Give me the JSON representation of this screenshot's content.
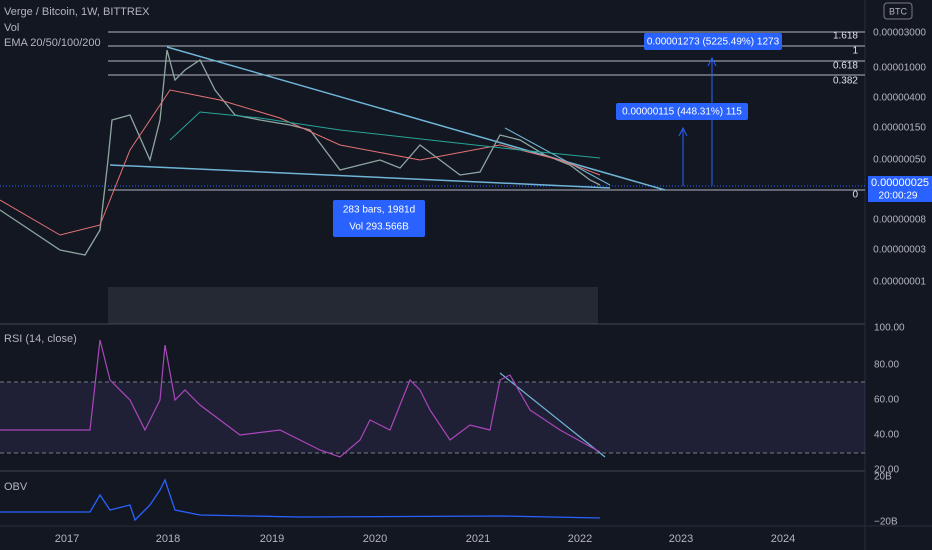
{
  "header": {
    "symbol": "Verge / Bitcoin, 1W, BITTREX",
    "vol": "Vol",
    "ema": "EMA 20/50/100/200"
  },
  "currency": "BTC",
  "price_axis": [
    "0.00003000",
    "0.00001000",
    "0.00000400",
    "0.00000150",
    "0.00000050",
    "0.00000008",
    "0.00000003",
    "0.00000001"
  ],
  "current_price": {
    "price": "0.00000025",
    "countdown": "20:00:29"
  },
  "fib_levels": [
    "1.618",
    "1",
    "0.618",
    "0.382",
    "0"
  ],
  "measures": [
    "0.00001273 (5225.49%) 1273",
    "0.00000115 (448.31%) 115"
  ],
  "range_box": {
    "bars": "283 bars, 1981d",
    "volume": "Vol 293.566B"
  },
  "rsi": {
    "title": "RSI (14, close)",
    "axis": [
      "100.00",
      "80.00",
      "60.00",
      "40.00",
      "20.00"
    ]
  },
  "obv": {
    "title": "OBV",
    "axis": [
      "20B",
      "−20B"
    ]
  },
  "time_axis": [
    "2017",
    "2018",
    "2019",
    "2020",
    "2021",
    "2022",
    "2023",
    "2024"
  ]
}
